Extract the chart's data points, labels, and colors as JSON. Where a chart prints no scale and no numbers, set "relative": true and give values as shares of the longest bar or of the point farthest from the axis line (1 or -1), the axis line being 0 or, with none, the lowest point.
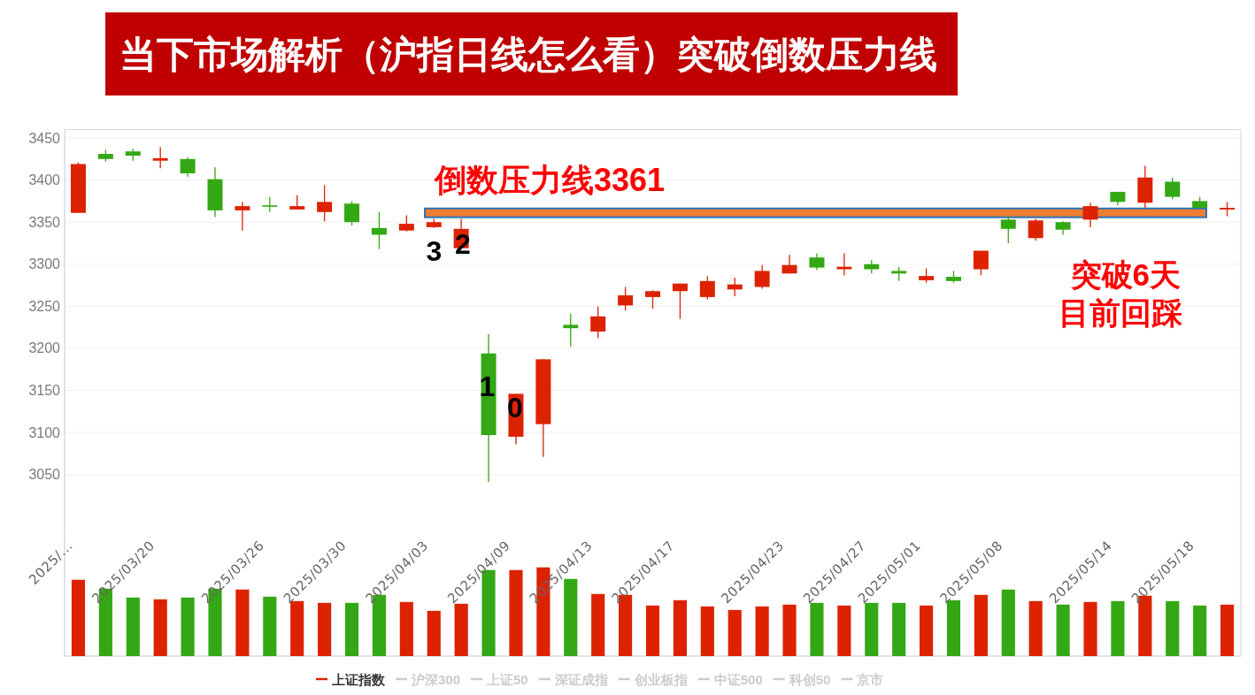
{
  "chart_data": [
    {
      "type": "candlestick",
      "title": "当下市场解析（沪指日线怎么看）突破倒数压力线",
      "categories": [
        "2025/...",
        null,
        null,
        "2025/03/20",
        null,
        null,
        null,
        "2025/03/26",
        null,
        null,
        "2025/03/30",
        null,
        null,
        "2025/04/03",
        null,
        null,
        "2025/04/09",
        null,
        null,
        "2025/04/13",
        null,
        null,
        "2025/04/17",
        null,
        null,
        null,
        "2025/04/23",
        null,
        null,
        "2025/04/27",
        null,
        "2025/05/01",
        null,
        null,
        "2025/05/08",
        null,
        null,
        null,
        "2025/05/14",
        null,
        null,
        "2025/05/18",
        null
      ],
      "series": [
        {
          "name": "上证指数",
          "type": "candlestick",
          "color": "#dd2200",
          "ohlc": [
            [
              3361,
              3421,
              3361,
              3419
            ],
            [
              3431,
              3436,
              3422,
              3425
            ],
            [
              3434,
              3437,
              3423,
              3429
            ],
            [
              3423,
              3439,
              3414,
              3426
            ],
            [
              3425,
              3427,
              3404,
              3408
            ],
            [
              3401,
              3415,
              3356,
              3364
            ],
            [
              3364,
              3374,
              3340,
              3369
            ],
            [
              3370,
              3380,
              3362,
              3369
            ],
            [
              3365,
              3382,
              3365,
              3369
            ],
            [
              3362,
              3394,
              3351,
              3374
            ],
            [
              3372,
              3375,
              3346,
              3350
            ],
            [
              3343,
              3362,
              3318,
              3335
            ],
            [
              3340,
              3358,
              3339,
              3348
            ],
            [
              3344,
              3354,
              3343,
              3350
            ],
            [
              3319,
              3354,
              3319,
              3342
            ],
            [
              3194,
              3217,
              3041,
              3097
            ],
            [
              3095,
              3146,
              3086,
              3146
            ],
            [
              3110,
              3187,
              3071,
              3187
            ],
            [
              3228,
              3241,
              3202,
              3224
            ],
            [
              3220,
              3250,
              3212,
              3238
            ],
            [
              3251,
              3273,
              3245,
              3263
            ],
            [
              3261,
              3269,
              3247,
              3268
            ],
            [
              3268,
              3277,
              3235,
              3277
            ],
            [
              3261,
              3286,
              3258,
              3280
            ],
            [
              3270,
              3284,
              3262,
              3276
            ],
            [
              3273,
              3299,
              3271,
              3292
            ],
            [
              3289,
              3311,
              3289,
              3299
            ],
            [
              3308,
              3313,
              3293,
              3296
            ],
            [
              3294,
              3313,
              3287,
              3297
            ],
            [
              3300,
              3305,
              3289,
              3294
            ],
            [
              3292,
              3297,
              3280,
              3289
            ],
            [
              3281,
              3295,
              3278,
              3286
            ],
            [
              3285,
              3292,
              3278,
              3280
            ],
            [
              3294,
              3316,
              3287,
              3316
            ],
            [
              3353,
              3357,
              3325,
              3342
            ],
            [
              3331,
              3354,
              3328,
              3352
            ],
            [
              3350,
              3351,
              3335,
              3341
            ],
            [
              3353,
              3373,
              3344,
              3369
            ],
            [
              3386,
              3386,
              3370,
              3374
            ],
            [
              3373,
              3417,
              3367,
              3403
            ],
            [
              3398,
              3403,
              3377,
              3380
            ],
            [
              3375,
              3380,
              3365,
              3367
            ],
            [
              3365,
              3374,
              3357,
              3367
            ]
          ],
          "colors": [
            "#dd2200",
            "#33a814",
            "#33a814",
            "#dd2200",
            "#33a814",
            "#33a814",
            "#dd2200",
            "#33a814",
            "#dd2200",
            "#dd2200",
            "#33a814",
            "#33a814",
            "#dd2200",
            "#dd2200",
            "#dd2200",
            "#33a814",
            "#dd2200",
            "#dd2200",
            "#33a814",
            "#dd2200",
            "#dd2200",
            "#dd2200",
            "#dd2200",
            "#dd2200",
            "#dd2200",
            "#dd2200",
            "#dd2200",
            "#33a814",
            "#dd2200",
            "#33a814",
            "#33a814",
            "#dd2200",
            "#33a814",
            "#dd2200",
            "#33a814",
            "#dd2200",
            "#33a814",
            "#dd2200",
            "#33a814",
            "#dd2200",
            "#33a814",
            "#33a814",
            "#dd2200"
          ]
        },
        {
          "name": "沪深300",
          "type": "line",
          "color": "#cccccc",
          "values": [
            null,
            null,
            null,
            null,
            null,
            null,
            null,
            null,
            null,
            null,
            null,
            null,
            null,
            null,
            null,
            null,
            null,
            null,
            null,
            null,
            null,
            null,
            null,
            null,
            null,
            null,
            null,
            null,
            null,
            null,
            null,
            null,
            null,
            null,
            null,
            null,
            null,
            null,
            null,
            null,
            null,
            null,
            null
          ]
        },
        {
          "name": "上证50",
          "type": "line",
          "color": "#cccccc",
          "values": [
            null,
            null,
            null,
            null,
            null,
            null,
            null,
            null,
            null,
            null,
            null,
            null,
            null,
            null,
            null,
            null,
            null,
            null,
            null,
            null,
            null,
            null,
            null,
            null,
            null,
            null,
            null,
            null,
            null,
            null,
            null,
            null,
            null,
            null,
            null,
            null,
            null,
            null,
            null,
            null,
            null,
            null,
            null
          ]
        },
        {
          "name": "深证成指",
          "type": "line",
          "color": "#cccccc",
          "values": [
            null,
            null,
            null,
            null,
            null,
            null,
            null,
            null,
            null,
            null,
            null,
            null,
            null,
            null,
            null,
            null,
            null,
            null,
            null,
            null,
            null,
            null,
            null,
            null,
            null,
            null,
            null,
            null,
            null,
            null,
            null,
            null,
            null,
            null,
            null,
            null,
            null,
            null,
            null,
            null,
            null,
            null,
            null
          ]
        },
        {
          "name": "创业板指",
          "type": "line",
          "color": "#cccccc",
          "values": [
            null,
            null,
            null,
            null,
            null,
            null,
            null,
            null,
            null,
            null,
            null,
            null,
            null,
            null,
            null,
            null,
            null,
            null,
            null,
            null,
            null,
            null,
            null,
            null,
            null,
            null,
            null,
            null,
            null,
            null,
            null,
            null,
            null,
            null,
            null,
            null,
            null,
            null,
            null,
            null,
            null,
            null,
            null
          ]
        },
        {
          "name": "中证500",
          "type": "line",
          "color": "#cccccc",
          "values": [
            null,
            null,
            null,
            null,
            null,
            null,
            null,
            null,
            null,
            null,
            null,
            null,
            null,
            null,
            null,
            null,
            null,
            null,
            null,
            null,
            null,
            null,
            null,
            null,
            null,
            null,
            null,
            null,
            null,
            null,
            null,
            null,
            null,
            null,
            null,
            null,
            null,
            null,
            null,
            null,
            null,
            null,
            null
          ]
        },
        {
          "name": "科创50",
          "type": "line",
          "color": "#cccccc",
          "values": [
            null,
            null,
            null,
            null,
            null,
            null,
            null,
            null,
            null,
            null,
            null,
            null,
            null,
            null,
            null,
            null,
            null,
            null,
            null,
            null,
            null,
            null,
            null,
            null,
            null,
            null,
            null,
            null,
            null,
            null,
            null,
            null,
            null,
            null,
            null,
            null,
            null,
            null,
            null,
            null,
            null,
            null,
            null
          ]
        },
        {
          "name": "京市",
          "type": "line",
          "color": "#cccccc",
          "values": [
            null,
            null,
            null,
            null,
            null,
            null,
            null,
            null,
            null,
            null,
            null,
            null,
            null,
            null,
            null,
            null,
            null,
            null,
            null,
            null,
            null,
            null,
            null,
            null,
            null,
            null,
            null,
            null,
            null,
            null,
            null,
            null,
            null,
            null,
            null,
            null,
            null,
            null,
            null,
            null,
            null,
            null,
            null
          ]
        }
      ],
      "ylim": [
        2980,
        3460
      ],
      "yticks": [
        3050,
        3100,
        3150,
        3200,
        3250,
        3300,
        3350,
        3400,
        3450
      ],
      "grid": "y",
      "legend": "bottom",
      "ref_lines": [
        {
          "axis": "y",
          "value": 3361,
          "label": "倒数压力线3361",
          "color": "#ed7d31"
        }
      ],
      "annotations": [
        "3",
        "2",
        "1",
        "0",
        "突破6天",
        "目前回踩"
      ]
    },
    {
      "type": "bar",
      "categories": [
        null,
        null,
        null,
        null,
        null,
        null,
        null,
        null,
        null,
        null,
        null,
        null,
        null,
        null,
        null,
        null,
        null,
        null,
        null,
        null,
        null,
        null,
        null,
        null,
        null,
        null,
        null,
        null,
        null,
        null,
        null,
        null,
        null,
        null,
        null,
        null,
        null,
        null,
        null,
        null,
        null,
        null,
        null
      ],
      "values": [
        0.86,
        0.76,
        0.66,
        0.64,
        0.66,
        0.76,
        0.75,
        0.67,
        0.62,
        0.6,
        0.6,
        0.69,
        0.61,
        0.51,
        0.59,
        0.97,
        0.97,
        1,
        0.87,
        0.7,
        0.69,
        0.57,
        0.63,
        0.56,
        0.52,
        0.56,
        0.58,
        0.6,
        0.57,
        0.6,
        0.6,
        0.57,
        0.63,
        0.69,
        0.75,
        0.62,
        0.58,
        0.61,
        0.62,
        0.68,
        0.62,
        0.57,
        0.58
      ],
      "colors": [
        "#dd2200",
        "#33a814",
        "#33a814",
        "#dd2200",
        "#33a814",
        "#33a814",
        "#dd2200",
        "#33a814",
        "#dd2200",
        "#dd2200",
        "#33a814",
        "#33a814",
        "#dd2200",
        "#dd2200",
        "#dd2200",
        "#33a814",
        "#dd2200",
        "#dd2200",
        "#33a814",
        "#dd2200",
        "#dd2200",
        "#dd2200",
        "#dd2200",
        "#dd2200",
        "#dd2200",
        "#dd2200",
        "#dd2200",
        "#33a814",
        "#dd2200",
        "#33a814",
        "#33a814",
        "#dd2200",
        "#33a814",
        "#dd2200",
        "#33a814",
        "#dd2200",
        "#33a814",
        "#dd2200",
        "#33a814",
        "#dd2200",
        "#33a814",
        "#33a814",
        "#dd2200"
      ],
      "relative": true
    }
  ]
}
